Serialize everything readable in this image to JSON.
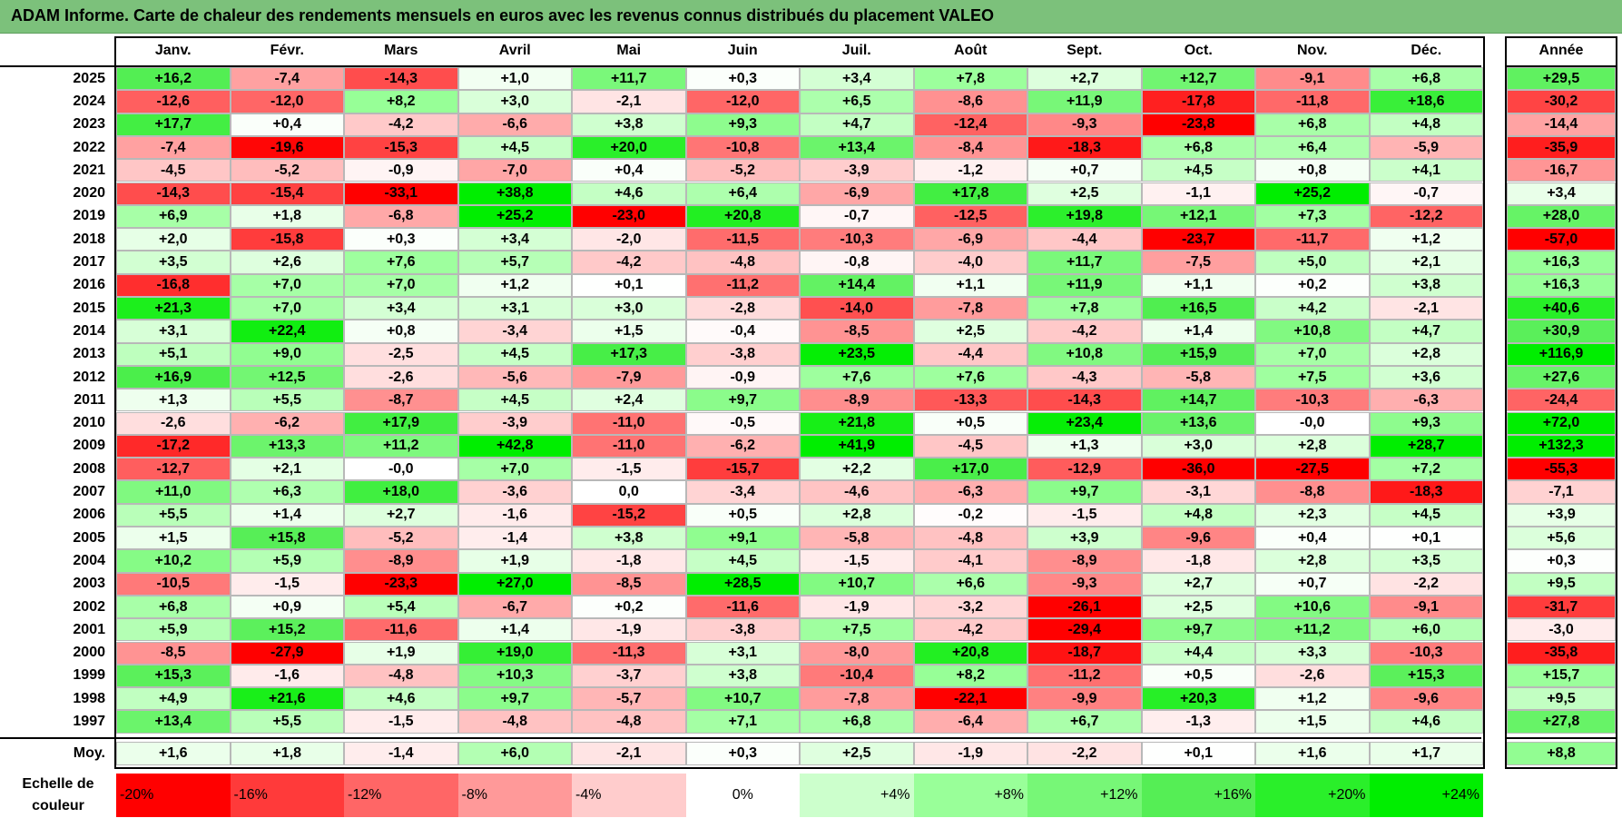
{
  "title": "ADAM Informe. Carte de chaleur des rendements mensuels en euros avec les revenus connus distribués du placement VALEO",
  "chart_data": {
    "type": "heatmap",
    "months": [
      "Janv.",
      "Févr.",
      "Mars",
      "Avril",
      "Mai",
      "Juin",
      "Juil.",
      "Août",
      "Sept.",
      "Oct.",
      "Nov.",
      "Déc."
    ],
    "year_column_label": "Année",
    "average_row_label": "Moy.",
    "rows": [
      {
        "year": "2025",
        "values": [
          "+16,2",
          "-7,4",
          "-14,3",
          "+1,0",
          "+11,7",
          "+0,3",
          "+3,4",
          "+7,8",
          "+2,7",
          "+12,7",
          "-9,1",
          "+6,8"
        ],
        "total": "+29,5"
      },
      {
        "year": "2024",
        "values": [
          "-12,6",
          "-12,0",
          "+8,2",
          "+3,0",
          "-2,1",
          "-12,0",
          "+6,5",
          "-8,6",
          "+11,9",
          "-17,8",
          "-11,8",
          "+18,6"
        ],
        "total": "-30,2"
      },
      {
        "year": "2023",
        "values": [
          "+17,7",
          "+0,4",
          "-4,2",
          "-6,6",
          "+3,8",
          "+9,3",
          "+4,7",
          "-12,4",
          "-9,3",
          "-23,8",
          "+6,8",
          "+4,8"
        ],
        "total": "-14,4"
      },
      {
        "year": "2022",
        "values": [
          "-7,4",
          "-19,6",
          "-15,3",
          "+4,5",
          "+20,0",
          "-10,8",
          "+13,4",
          "-8,4",
          "-18,3",
          "+6,8",
          "+6,4",
          "-5,9"
        ],
        "total": "-35,9"
      },
      {
        "year": "2021",
        "values": [
          "-4,5",
          "-5,2",
          "-0,9",
          "-7,0",
          "+0,4",
          "-5,2",
          "-3,9",
          "-1,2",
          "+0,7",
          "+4,5",
          "+0,8",
          "+4,1"
        ],
        "total": "-16,7"
      },
      {
        "year": "2020",
        "values": [
          "-14,3",
          "-15,4",
          "-33,1",
          "+38,8",
          "+4,6",
          "+6,4",
          "-6,9",
          "+17,8",
          "+2,5",
          "-1,1",
          "+25,2",
          "-0,7"
        ],
        "total": "+3,4"
      },
      {
        "year": "2019",
        "values": [
          "+6,9",
          "+1,8",
          "-6,8",
          "+25,2",
          "-23,0",
          "+20,8",
          "-0,7",
          "-12,5",
          "+19,8",
          "+12,1",
          "+7,3",
          "-12,2"
        ],
        "total": "+28,0"
      },
      {
        "year": "2018",
        "values": [
          "+2,0",
          "-15,8",
          "+0,3",
          "+3,4",
          "-2,0",
          "-11,5",
          "-10,3",
          "-6,9",
          "-4,4",
          "-23,7",
          "-11,7",
          "+1,2"
        ],
        "total": "-57,0"
      },
      {
        "year": "2017",
        "values": [
          "+3,5",
          "+2,6",
          "+7,6",
          "+5,7",
          "-4,2",
          "-4,8",
          "-0,8",
          "-4,0",
          "+11,7",
          "-7,5",
          "+5,0",
          "+2,1"
        ],
        "total": "+16,3"
      },
      {
        "year": "2016",
        "values": [
          "-16,8",
          "+7,0",
          "+7,0",
          "+1,2",
          "+0,1",
          "-11,2",
          "+14,4",
          "+1,1",
          "+11,9",
          "+1,1",
          "+0,2",
          "+3,8"
        ],
        "total": "+16,3"
      },
      {
        "year": "2015",
        "values": [
          "+21,3",
          "+7,0",
          "+3,4",
          "+3,1",
          "+3,0",
          "-2,8",
          "-14,0",
          "-7,8",
          "+7,8",
          "+16,5",
          "+4,2",
          "-2,1"
        ],
        "total": "+40,6"
      },
      {
        "year": "2014",
        "values": [
          "+3,1",
          "+22,4",
          "+0,8",
          "-3,4",
          "+1,5",
          "-0,4",
          "-8,5",
          "+2,5",
          "-4,2",
          "+1,4",
          "+10,8",
          "+4,7"
        ],
        "total": "+30,9"
      },
      {
        "year": "2013",
        "values": [
          "+5,1",
          "+9,0",
          "-2,5",
          "+4,5",
          "+17,3",
          "-3,8",
          "+23,5",
          "-4,4",
          "+10,8",
          "+15,9",
          "+7,0",
          "+2,8"
        ],
        "total": "+116,9"
      },
      {
        "year": "2012",
        "values": [
          "+16,9",
          "+12,5",
          "-2,6",
          "-5,6",
          "-7,9",
          "-0,9",
          "+7,6",
          "+7,6",
          "-4,3",
          "-5,8",
          "+7,5",
          "+3,6"
        ],
        "total": "+27,6"
      },
      {
        "year": "2011",
        "values": [
          "+1,3",
          "+5,5",
          "-8,7",
          "+4,5",
          "+2,4",
          "+9,7",
          "-8,9",
          "-13,3",
          "-14,3",
          "+14,7",
          "-10,3",
          "-6,3"
        ],
        "total": "-24,4"
      },
      {
        "year": "2010",
        "values": [
          "-2,6",
          "-6,2",
          "+17,9",
          "-3,9",
          "-11,0",
          "-0,5",
          "+21,8",
          "+0,5",
          "+23,4",
          "+13,6",
          "-0,0",
          "+9,3"
        ],
        "total": "+72,0"
      },
      {
        "year": "2009",
        "values": [
          "-17,2",
          "+13,3",
          "+11,2",
          "+42,8",
          "-11,0",
          "-6,2",
          "+41,9",
          "-4,5",
          "+1,3",
          "+3,0",
          "+2,8",
          "+28,7"
        ],
        "total": "+132,3"
      },
      {
        "year": "2008",
        "values": [
          "-12,7",
          "+2,1",
          "-0,0",
          "+7,0",
          "-1,5",
          "-15,7",
          "+2,2",
          "+17,0",
          "-12,9",
          "-36,0",
          "-27,5",
          "+7,2"
        ],
        "total": "-55,3"
      },
      {
        "year": "2007",
        "values": [
          "+11,0",
          "+6,3",
          "+18,0",
          "-3,6",
          "0,0",
          "-3,4",
          "-4,6",
          "-6,3",
          "+9,7",
          "-3,1",
          "-8,8",
          "-18,3"
        ],
        "total": "-7,1"
      },
      {
        "year": "2006",
        "values": [
          "+5,5",
          "+1,4",
          "+2,7",
          "-1,6",
          "-15,2",
          "+0,5",
          "+2,8",
          "-0,2",
          "-1,5",
          "+4,8",
          "+2,3",
          "+4,5"
        ],
        "total": "+3,9"
      },
      {
        "year": "2005",
        "values": [
          "+1,5",
          "+15,8",
          "-5,2",
          "-1,4",
          "+3,8",
          "+9,1",
          "-5,8",
          "-4,8",
          "+3,9",
          "-9,6",
          "+0,4",
          "+0,1"
        ],
        "total": "+5,6"
      },
      {
        "year": "2004",
        "values": [
          "+10,2",
          "+5,9",
          "-8,9",
          "+1,9",
          "-1,8",
          "+4,5",
          "-1,5",
          "-4,1",
          "-8,9",
          "-1,8",
          "+2,8",
          "+3,5"
        ],
        "total": "+0,3"
      },
      {
        "year": "2003",
        "values": [
          "-10,5",
          "-1,5",
          "-23,3",
          "+27,0",
          "-8,5",
          "+28,5",
          "+10,7",
          "+6,6",
          "-9,3",
          "+2,7",
          "+0,7",
          "-2,2"
        ],
        "total": "+9,5"
      },
      {
        "year": "2002",
        "values": [
          "+6,8",
          "+0,9",
          "+5,4",
          "-6,7",
          "+0,2",
          "-11,6",
          "-1,9",
          "-3,2",
          "-26,1",
          "+2,5",
          "+10,6",
          "-9,1"
        ],
        "total": "-31,7"
      },
      {
        "year": "2001",
        "values": [
          "+5,9",
          "+15,2",
          "-11,6",
          "+1,4",
          "-1,9",
          "-3,8",
          "+7,5",
          "-4,2",
          "-29,4",
          "+9,7",
          "+11,2",
          "+6,0"
        ],
        "total": "-3,0"
      },
      {
        "year": "2000",
        "values": [
          "-8,5",
          "-27,9",
          "+1,9",
          "+19,0",
          "-11,3",
          "+3,1",
          "-8,0",
          "+20,8",
          "-18,7",
          "+4,4",
          "+3,3",
          "-10,3"
        ],
        "total": "-35,8"
      },
      {
        "year": "1999",
        "values": [
          "+15,3",
          "-1,6",
          "-4,8",
          "+10,3",
          "-3,7",
          "+3,8",
          "-10,4",
          "+8,2",
          "-11,2",
          "+0,5",
          "-2,6",
          "+15,3"
        ],
        "total": "+15,7"
      },
      {
        "year": "1998",
        "values": [
          "+4,9",
          "+21,6",
          "+4,6",
          "+9,7",
          "-5,7",
          "+10,7",
          "-7,8",
          "-22,1",
          "-9,9",
          "+20,3",
          "+1,2",
          "-9,6"
        ],
        "total": "+9,5"
      },
      {
        "year": "1997",
        "values": [
          "+13,4",
          "+5,5",
          "-1,5",
          "-4,8",
          "-4,8",
          "+7,1",
          "+6,8",
          "-6,4",
          "+6,7",
          "-1,3",
          "+1,5",
          "+4,6"
        ],
        "total": "+27,8"
      }
    ],
    "average": {
      "values": [
        "+1,6",
        "+1,8",
        "-1,4",
        "+6,0",
        "-2,1",
        "+0,3",
        "+2,5",
        "-1,9",
        "-2,2",
        "+0,1",
        "+1,6",
        "+1,7"
      ],
      "total": "+8,8"
    },
    "color_scale": {
      "label_line1": "Echelle de",
      "label_line2": "couleur",
      "stops": [
        {
          "label": "-20%",
          "value": -20,
          "color": "#ff0000"
        },
        {
          "label": "-16%",
          "value": -16,
          "color": "#ff3a3a"
        },
        {
          "label": "-12%",
          "value": -12,
          "color": "#ff6666"
        },
        {
          "label": "-8%",
          "value": -8,
          "color": "#ff9999"
        },
        {
          "label": "-4%",
          "value": -4,
          "color": "#ffcccc"
        },
        {
          "label": "0%",
          "value": 0,
          "color": "#ffffff"
        },
        {
          "label": "+4%",
          "value": 4,
          "color": "#ccffcc"
        },
        {
          "label": "+8%",
          "value": 8,
          "color": "#99ff99"
        },
        {
          "label": "+12%",
          "value": 12,
          "color": "#77f777"
        },
        {
          "label": "+16%",
          "value": 16,
          "color": "#55ee55"
        },
        {
          "label": "+20%",
          "value": 20,
          "color": "#2aef2a"
        },
        {
          "label": "+24%",
          "value": 24,
          "color": "#00ee00"
        }
      ]
    }
  }
}
